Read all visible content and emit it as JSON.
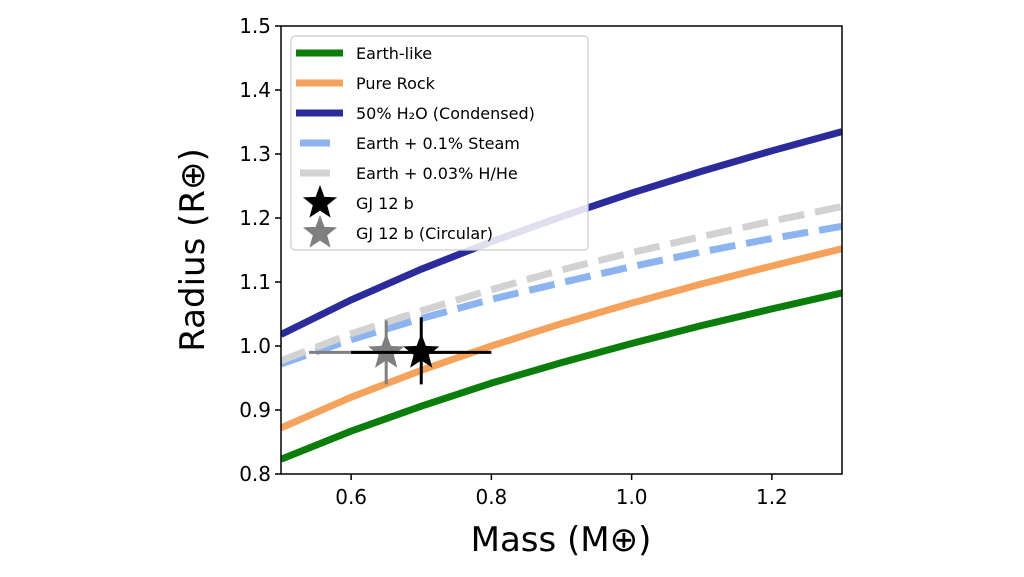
{
  "chart_data": {
    "type": "line",
    "title": "",
    "xlabel": "Mass (M⊕)",
    "ylabel": "Radius (R⊕)",
    "xlim": [
      0.5,
      1.3
    ],
    "ylim": [
      0.8,
      1.5
    ],
    "xticks": [
      "0.6",
      "0.8",
      "1.0",
      "1.2"
    ],
    "xtick_values": [
      0.6,
      0.8,
      1.0,
      1.2
    ],
    "yticks": [
      "0.8",
      "0.9",
      "1.0",
      "1.1",
      "1.2",
      "1.3",
      "1.4",
      "1.5"
    ],
    "ytick_values": [
      0.8,
      0.9,
      1.0,
      1.1,
      1.2,
      1.3,
      1.4,
      1.5
    ],
    "grid": false,
    "legend_placement": "top-left",
    "x": [
      0.5,
      0.6,
      0.7,
      0.8,
      0.9,
      1.0,
      1.1,
      1.2,
      1.3
    ],
    "series": [
      {
        "name": "Earth-like",
        "color": "#0a7d0a",
        "dash": "solid",
        "values": [
          0.823,
          0.867,
          0.906,
          0.942,
          0.974,
          1.004,
          1.032,
          1.058,
          1.083
        ]
      },
      {
        "name": "Pure Rock",
        "color": "#f5a25d",
        "dash": "solid",
        "values": [
          0.872,
          0.92,
          0.962,
          1.0,
          1.035,
          1.067,
          1.097,
          1.125,
          1.152
        ]
      },
      {
        "name": "50% H₂O (Condensed)",
        "color": "#2b2b9c",
        "dash": "solid",
        "values": [
          1.018,
          1.072,
          1.12,
          1.163,
          1.202,
          1.239,
          1.273,
          1.305,
          1.335
        ]
      },
      {
        "name": "Earth + 0.1% Steam",
        "color": "#8cb4ee",
        "dash": "dashed",
        "values": [
          0.972,
          1.01,
          1.043,
          1.073,
          1.099,
          1.124,
          1.147,
          1.168,
          1.187
        ]
      },
      {
        "name": "Earth + 0.03% H/He",
        "color": "#d2d2d2",
        "dash": "dashed",
        "values": [
          0.977,
          1.019,
          1.055,
          1.088,
          1.119,
          1.146,
          1.171,
          1.195,
          1.218
        ]
      }
    ],
    "points": [
      {
        "name": "GJ 12 b (Circular)",
        "color": "#7f7f7f",
        "marker": "star",
        "x": 0.65,
        "y": 0.99,
        "xerr": [
          0.54,
          0.76
        ],
        "yerr": [
          0.94,
          1.04
        ]
      },
      {
        "name": "GJ 12 b",
        "color": "#000000",
        "marker": "star",
        "x": 0.7,
        "y": 0.99,
        "xerr": [
          0.6,
          0.8
        ],
        "yerr": [
          0.94,
          1.045
        ]
      }
    ]
  }
}
